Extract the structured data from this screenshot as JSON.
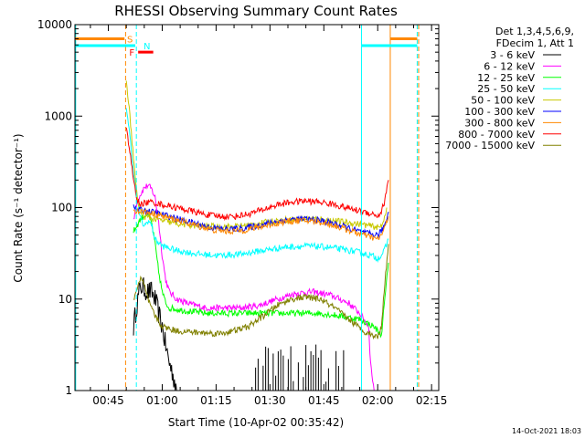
{
  "chart_data": {
    "type": "line",
    "title": "RHESSI Observing Summary Count Rates",
    "xlabel": "Start Time (10-Apr-02 00:35:42)",
    "ylabel": "Count Rate (s⁻¹ detector⁻¹)",
    "y_scale": "log",
    "ylim": [
      1,
      10000
    ],
    "xlim_minutes": [
      35.7,
      137
    ],
    "x_ticks": [
      {
        "label": "00:45",
        "minutes": 45
      },
      {
        "label": "01:00",
        "minutes": 60
      },
      {
        "label": "01:15",
        "minutes": 75
      },
      {
        "label": "01:30",
        "minutes": 90
      },
      {
        "label": "01:45",
        "minutes": 105
      },
      {
        "label": "02:00",
        "minutes": 120
      },
      {
        "label": "02:15",
        "minutes": 135
      }
    ],
    "y_ticks": [
      {
        "label": "1",
        "value": 1
      },
      {
        "label": "10",
        "value": 10
      },
      {
        "label": "100",
        "value": 100
      },
      {
        "label": "1000",
        "value": 1000
      },
      {
        "label": "10000",
        "value": 10000
      }
    ],
    "legend_header": [
      "Det 1,3,4,5,6,9,",
      "FDecim 1, Att 1"
    ],
    "legend_placement": "right",
    "series": [
      {
        "name": "3 - 6 keV",
        "color": "#000000",
        "points": [
          [
            52,
            5
          ],
          [
            53,
            9
          ],
          [
            54,
            14
          ],
          [
            55,
            13
          ],
          [
            56,
            12
          ],
          [
            57,
            12
          ],
          [
            58,
            10
          ],
          [
            59,
            7
          ],
          [
            60,
            5
          ],
          [
            61,
            3
          ],
          [
            62,
            2
          ],
          [
            63,
            1.5
          ],
          [
            64,
            1
          ]
        ]
      },
      {
        "name": "6 - 12 keV",
        "color": "#ff00ff",
        "points": [
          [
            52,
            70
          ],
          [
            53,
            120
          ],
          [
            55,
            165
          ],
          [
            56,
            175
          ],
          [
            57,
            160
          ],
          [
            58,
            130
          ],
          [
            59,
            70
          ],
          [
            60,
            30
          ],
          [
            61,
            16
          ],
          [
            62,
            12
          ],
          [
            64,
            10
          ],
          [
            67,
            9
          ],
          [
            72,
            8
          ],
          [
            77,
            8
          ],
          [
            82,
            8
          ],
          [
            87,
            8.5
          ],
          [
            92,
            10
          ],
          [
            97,
            11.5
          ],
          [
            102,
            12
          ],
          [
            107,
            11
          ],
          [
            112,
            9
          ],
          [
            115,
            7
          ],
          [
            117.5,
            5
          ],
          [
            118,
            2
          ],
          [
            119,
            1
          ]
        ]
      },
      {
        "name": "12 - 25 keV",
        "color": "#00ff00",
        "points": [
          [
            52,
            55
          ],
          [
            54,
            75
          ],
          [
            55,
            82
          ],
          [
            56,
            85
          ],
          [
            57,
            70
          ],
          [
            58,
            40
          ],
          [
            59,
            20
          ],
          [
            60,
            12
          ],
          [
            61,
            9
          ],
          [
            62,
            8
          ],
          [
            66,
            7.5
          ],
          [
            72,
            7
          ],
          [
            80,
            7
          ],
          [
            88,
            7
          ],
          [
            96,
            7
          ],
          [
            104,
            7
          ],
          [
            110,
            6.5
          ],
          [
            115,
            6
          ],
          [
            119,
            5
          ],
          [
            121,
            4
          ],
          [
            122,
            10
          ],
          [
            123,
            25
          ]
        ]
      },
      {
        "name": "25 - 50 keV",
        "color": "#00ffff",
        "points": [
          [
            50,
            1300
          ],
          [
            51,
            600
          ],
          [
            52,
            250
          ],
          [
            53,
            120
          ],
          [
            54,
            75
          ],
          [
            55,
            62
          ],
          [
            56,
            72
          ],
          [
            57,
            65
          ],
          [
            58,
            45
          ],
          [
            60,
            38
          ],
          [
            64,
            34
          ],
          [
            70,
            31
          ],
          [
            76,
            30
          ],
          [
            82,
            31
          ],
          [
            88,
            34
          ],
          [
            94,
            37
          ],
          [
            100,
            38
          ],
          [
            106,
            37
          ],
          [
            110,
            35
          ],
          [
            114,
            33
          ],
          [
            118,
            30
          ],
          [
            120,
            28
          ],
          [
            121,
            30
          ],
          [
            122,
            35
          ],
          [
            123,
            45
          ]
        ]
      },
      {
        "name": "50 - 100 keV",
        "color": "#c8c800",
        "points": [
          [
            50,
            2500
          ],
          [
            51,
            1000
          ],
          [
            52,
            350
          ],
          [
            53,
            130
          ],
          [
            54,
            90
          ],
          [
            55,
            80
          ],
          [
            57,
            76
          ],
          [
            60,
            72
          ],
          [
            65,
            66
          ],
          [
            70,
            63
          ],
          [
            75,
            62
          ],
          [
            80,
            62
          ],
          [
            85,
            65
          ],
          [
            90,
            70
          ],
          [
            95,
            74
          ],
          [
            100,
            76
          ],
          [
            105,
            74
          ],
          [
            110,
            70
          ],
          [
            115,
            66
          ],
          [
            119,
            62
          ],
          [
            120.5,
            60
          ],
          [
            121.5,
            70
          ],
          [
            122.5,
            100
          ]
        ]
      },
      {
        "name": "100 - 300 keV",
        "color": "#0000ff",
        "points": [
          [
            52,
            100
          ],
          [
            53,
            96
          ],
          [
            55,
            93
          ],
          [
            58,
            88
          ],
          [
            62,
            80
          ],
          [
            66,
            72
          ],
          [
            70,
            66
          ],
          [
            74,
            60
          ],
          [
            78,
            58
          ],
          [
            82,
            59
          ],
          [
            86,
            63
          ],
          [
            90,
            68
          ],
          [
            94,
            73
          ],
          [
            98,
            75
          ],
          [
            102,
            74
          ],
          [
            106,
            70
          ],
          [
            110,
            63
          ],
          [
            114,
            56
          ],
          [
            117,
            52
          ],
          [
            120,
            50
          ],
          [
            121,
            55
          ],
          [
            122,
            65
          ],
          [
            123,
            90
          ]
        ]
      },
      {
        "name": "300 - 800 keV",
        "color": "#ff8800",
        "points": [
          [
            52,
            95
          ],
          [
            53,
            92
          ],
          [
            55,
            90
          ],
          [
            58,
            85
          ],
          [
            62,
            77
          ],
          [
            66,
            70
          ],
          [
            70,
            63
          ],
          [
            74,
            57
          ],
          [
            78,
            55
          ],
          [
            82,
            56
          ],
          [
            86,
            60
          ],
          [
            90,
            65
          ],
          [
            94,
            70
          ],
          [
            98,
            72
          ],
          [
            102,
            71
          ],
          [
            106,
            67
          ],
          [
            110,
            60
          ],
          [
            114,
            53
          ],
          [
            117,
            49
          ],
          [
            120,
            45
          ],
          [
            121,
            50
          ],
          [
            122,
            60
          ],
          [
            123,
            80
          ]
        ]
      },
      {
        "name": "800 - 7000 keV",
        "color": "#ff0000",
        "points": [
          [
            50,
            800
          ],
          [
            51,
            400
          ],
          [
            52,
            200
          ],
          [
            53,
            120
          ],
          [
            54,
            110
          ],
          [
            55,
            112
          ],
          [
            57,
            115
          ],
          [
            60,
            108
          ],
          [
            64,
            100
          ],
          [
            68,
            92
          ],
          [
            72,
            84
          ],
          [
            76,
            80
          ],
          [
            80,
            80
          ],
          [
            84,
            85
          ],
          [
            88,
            95
          ],
          [
            92,
            107
          ],
          [
            96,
            115
          ],
          [
            100,
            118
          ],
          [
            104,
            115
          ],
          [
            108,
            108
          ],
          [
            112,
            98
          ],
          [
            116,
            90
          ],
          [
            119,
            85
          ],
          [
            120,
            80
          ],
          [
            121,
            90
          ],
          [
            122,
            120
          ],
          [
            123,
            200
          ]
        ]
      },
      {
        "name": "7000 - 15000 keV",
        "color": "#808000",
        "points": [
          [
            52,
            10
          ],
          [
            53,
            13
          ],
          [
            54,
            17
          ],
          [
            55,
            14
          ],
          [
            56,
            10
          ],
          [
            57,
            8
          ],
          [
            58,
            6.5
          ],
          [
            60,
            5
          ],
          [
            64,
            4.5
          ],
          [
            70,
            4.3
          ],
          [
            76,
            4.2
          ],
          [
            80,
            4.5
          ],
          [
            84,
            5
          ],
          [
            88,
            6.5
          ],
          [
            92,
            8.5
          ],
          [
            96,
            10
          ],
          [
            100,
            10.5
          ],
          [
            104,
            10
          ],
          [
            108,
            8
          ],
          [
            112,
            6
          ],
          [
            116,
            4.5
          ],
          [
            119,
            4
          ],
          [
            120,
            3.8
          ],
          [
            121,
            5
          ],
          [
            122,
            15
          ],
          [
            123,
            40
          ]
        ]
      }
    ],
    "state_bars": [
      {
        "label": "S",
        "color": "#ff8800",
        "level": 7000,
        "segments": [
          [
            35.7,
            49.5
          ],
          [
            123.5,
            131
          ]
        ]
      },
      {
        "label": "N",
        "color": "#00ffff",
        "level": 5900,
        "segments": [
          [
            35.7,
            52.5
          ],
          [
            115.5,
            131
          ]
        ]
      },
      {
        "label": "F",
        "color": "#ff0000",
        "level": 5000,
        "segments": [
          [
            53.3,
            57.5
          ]
        ]
      }
    ],
    "vertical_lines": [
      {
        "minutes": 35.9,
        "color": "#00ffff",
        "style": "solid"
      },
      {
        "minutes": 49.8,
        "color": "#ff8800",
        "style": "dashed"
      },
      {
        "minutes": 52.8,
        "color": "#00ffff",
        "style": "dashed"
      },
      {
        "minutes": 115.5,
        "color": "#00ffff",
        "style": "solid"
      },
      {
        "minutes": 123.5,
        "color": "#ff8800",
        "style": "solid"
      },
      {
        "minutes": 131,
        "color": "#00ffff",
        "style": "dashed"
      },
      {
        "minutes": 131.4,
        "color": "#ff8800",
        "style": "dashed"
      }
    ]
  },
  "timestamp": "14-Oct-2021 18:03"
}
